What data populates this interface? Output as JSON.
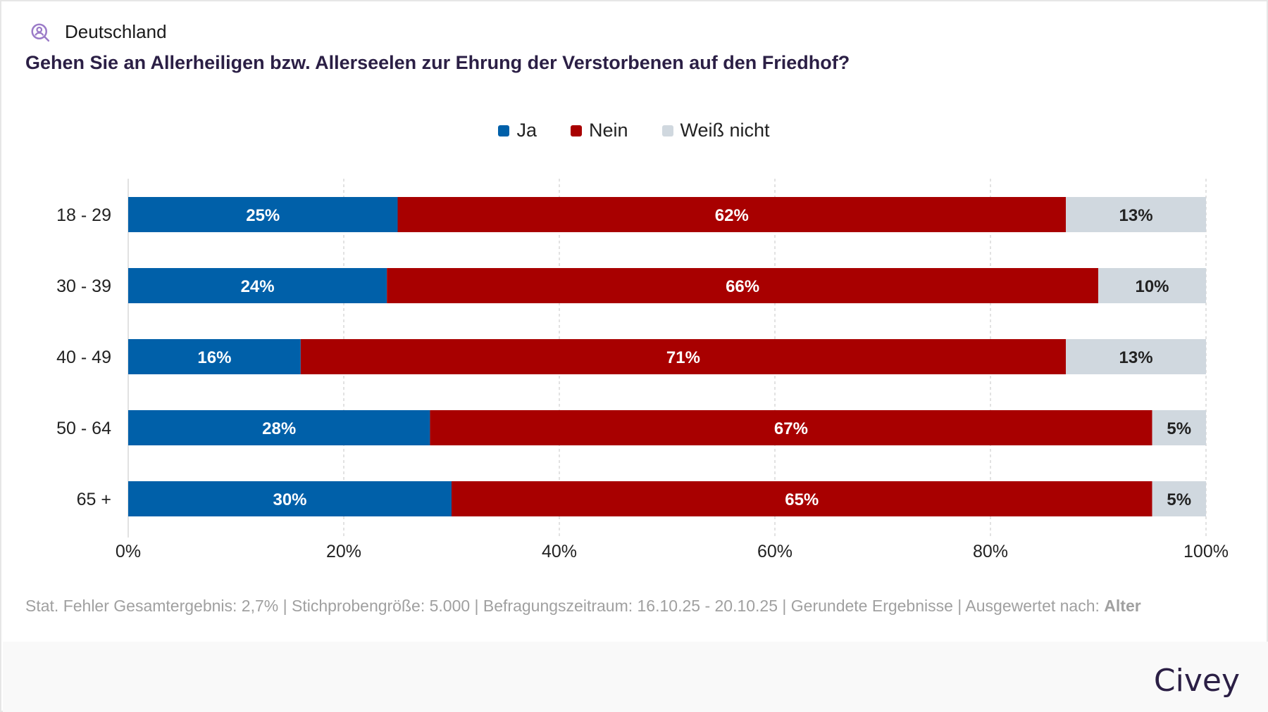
{
  "header": {
    "region_icon": "person-search-icon",
    "region": "Deutschland",
    "title": "Gehen Sie an Allerheiligen bzw. Allerseelen zur Ehrung der Verstorbenen auf den Friedhof?"
  },
  "colors": {
    "ja": "#0060a9",
    "nein": "#a80000",
    "weiss_nicht": "#d0d8df",
    "title": "#2b1f45"
  },
  "chart_data": {
    "type": "bar",
    "orientation": "horizontal",
    "stacked": true,
    "title": "Gehen Sie an Allerheiligen bzw. Allerseelen zur Ehrung der Verstorbenen auf den Friedhof?",
    "categories": [
      "18 - 29",
      "30 - 39",
      "40 - 49",
      "50 - 64",
      "65 +"
    ],
    "series": [
      {
        "name": "Ja",
        "color": "#0060a9",
        "values": [
          25,
          24,
          16,
          28,
          30
        ]
      },
      {
        "name": "Nein",
        "color": "#a80000",
        "values": [
          62,
          66,
          71,
          67,
          65
        ]
      },
      {
        "name": "Weiß nicht",
        "color": "#d0d8df",
        "values": [
          13,
          10,
          13,
          5,
          5
        ]
      }
    ],
    "xlim": [
      0,
      100
    ],
    "xticks": [
      "0%",
      "20%",
      "40%",
      "60%",
      "80%",
      "100%"
    ],
    "grid": true,
    "legend": "top-center",
    "xlabel": "",
    "ylabel": ""
  },
  "footer": {
    "note": "Stat. Fehler Gesamtergebnis: 2,7% | Stichprobengröße: 5.000 | Befragungszeitraum: 16.10.25 - 20.10.25 | Gerundete Ergebnisse | Ausgewertet nach: ",
    "note_bold": "Alter",
    "brand": "Civey"
  }
}
